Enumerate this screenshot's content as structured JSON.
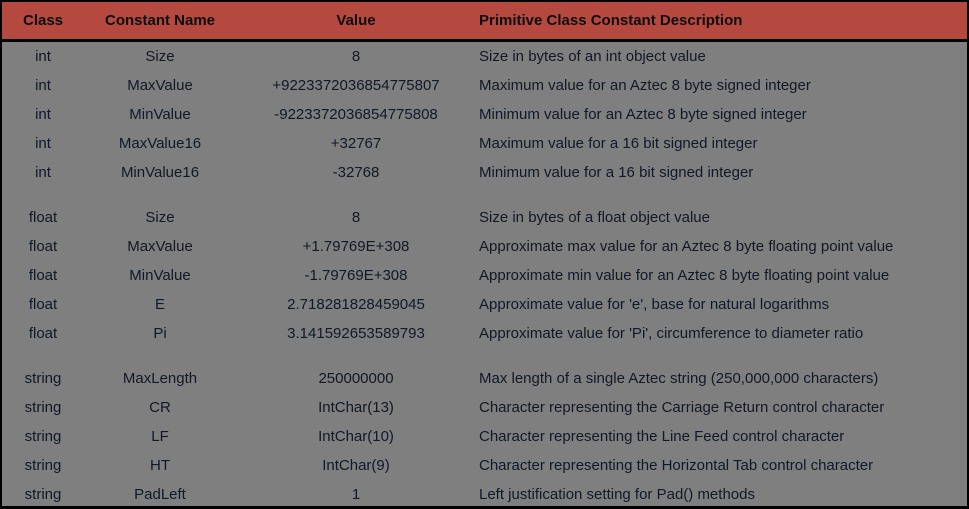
{
  "header": {
    "class": "Class",
    "name": "Constant Name",
    "value": "Value",
    "description": "Primitive Class Constant Description"
  },
  "colors": {
    "header_bg": "#b6493f",
    "body_bg": "#7f7f7f",
    "border": "#000000"
  },
  "groups": [
    {
      "rows": [
        {
          "class": "int",
          "name": "Size",
          "value": "8",
          "description": "Size in bytes of an int object value"
        },
        {
          "class": "int",
          "name": "MaxValue",
          "value": "+9223372036854775807",
          "description": "Maximum value for an Aztec 8 byte signed integer"
        },
        {
          "class": "int",
          "name": "MinValue",
          "value": "-9223372036854775808",
          "description": "Minimum value for an Aztec 8 byte signed integer"
        },
        {
          "class": "int",
          "name": "MaxValue16",
          "value": "+32767",
          "description": "Maximum value for a 16 bit signed integer"
        },
        {
          "class": "int",
          "name": "MinValue16",
          "value": "-32768",
          "description": "Minimum value for a 16 bit signed integer"
        }
      ]
    },
    {
      "rows": [
        {
          "class": "float",
          "name": "Size",
          "value": "8",
          "description": "Size in bytes of a float object value"
        },
        {
          "class": "float",
          "name": "MaxValue",
          "value": "+1.79769E+308",
          "description": "Approximate max value for an Aztec 8 byte floating point value"
        },
        {
          "class": "float",
          "name": "MinValue",
          "value": "-1.79769E+308",
          "description": "Approximate min value for an Aztec 8 byte floating point value"
        },
        {
          "class": "float",
          "name": "E",
          "value": "2.718281828459045",
          "description": "Approximate value for 'e', base for natural logarithms"
        },
        {
          "class": "float",
          "name": "Pi",
          "value": "3.141592653589793",
          "description": "Approximate value for 'Pi', circumference to diameter ratio"
        }
      ]
    },
    {
      "rows": [
        {
          "class": "string",
          "name": "MaxLength",
          "value": "250000000",
          "description": "Max length of a single Aztec string (250,000,000 characters)"
        },
        {
          "class": "string",
          "name": "CR",
          "value": "IntChar(13)",
          "description": "Character representing the Carriage Return control character"
        },
        {
          "class": "string",
          "name": "LF",
          "value": "IntChar(10)",
          "description": "Character representing the Line Feed control character"
        },
        {
          "class": "string",
          "name": "HT",
          "value": "IntChar(9)",
          "description": "Character representing the Horizontal Tab control character"
        },
        {
          "class": "string",
          "name": "PadLeft",
          "value": "1",
          "description": "Left justification setting for Pad() methods"
        }
      ]
    }
  ]
}
